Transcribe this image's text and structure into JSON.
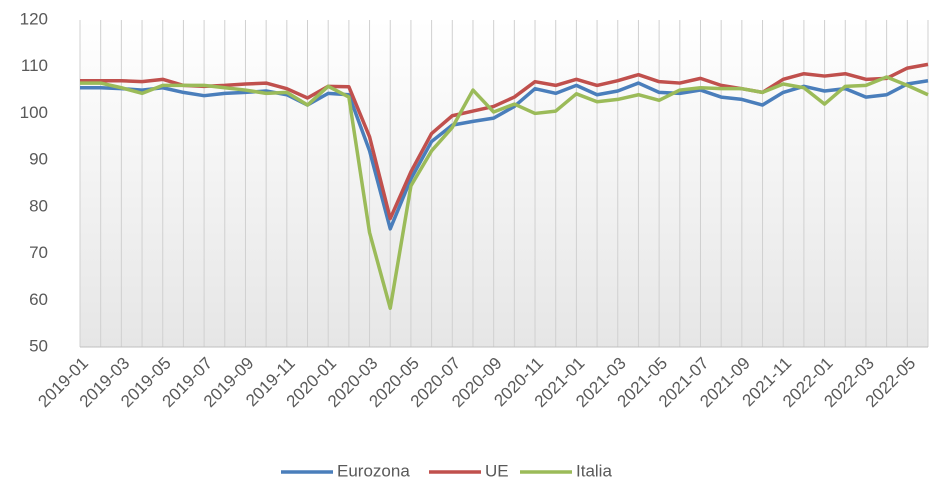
{
  "chart_data": {
    "type": "line",
    "categories": [
      "2019-01",
      null,
      "2019-03",
      null,
      "2019-05",
      null,
      "2019-07",
      null,
      "2019-09",
      null,
      "2019-11",
      null,
      "2020-01",
      null,
      "2020-03",
      null,
      "2020-05",
      null,
      "2020-07",
      null,
      "2020-09",
      null,
      "2020-11",
      null,
      "2021-01",
      null,
      "2021-03",
      null,
      "2021-05",
      null,
      "2021-07",
      null,
      "2021-09",
      null,
      "2021-11",
      null,
      "2022-01",
      null,
      "2022-03",
      null,
      "2022-05",
      null
    ],
    "series": [
      {
        "name": "Eurozona",
        "color": "#4a7ebb",
        "values": [
          105.5,
          105.5,
          105.3,
          105,
          105.5,
          104.5,
          103.8,
          104.3,
          104.5,
          104.8,
          104,
          101.8,
          104.3,
          104,
          92,
          75.3,
          86,
          94,
          97.5,
          98.3,
          99,
          101.5,
          105.3,
          104.3,
          106,
          104,
          104.8,
          106.5,
          104.5,
          104.3,
          105,
          103.5,
          103,
          101.8,
          104.5,
          105.8,
          104.8,
          105.3,
          103.5,
          104,
          106.3,
          107
        ]
      },
      {
        "name": "UE",
        "color": "#c0504d",
        "values": [
          107,
          107,
          107,
          106.8,
          107.3,
          106,
          105.8,
          106,
          106.3,
          106.5,
          105.3,
          103.3,
          105.8,
          105.7,
          95,
          77.5,
          87.5,
          95.7,
          99.5,
          100.5,
          101.5,
          103.5,
          106.8,
          106,
          107.3,
          106,
          107,
          108.3,
          106.8,
          106.5,
          107.5,
          106,
          105.3,
          104.5,
          107.3,
          108.5,
          108,
          108.5,
          107.3,
          107.5,
          109.7,
          110.5
        ]
      },
      {
        "name": "Italia",
        "color": "#9bbb59",
        "values": [
          106.5,
          106.5,
          105.5,
          104.3,
          106,
          106,
          106,
          105.5,
          105,
          104.3,
          104.5,
          101.8,
          105.8,
          103.5,
          74.5,
          58.3,
          84.5,
          92,
          97,
          105,
          100.3,
          102,
          100,
          100.5,
          104.2,
          102.5,
          103,
          104,
          102.8,
          105,
          105.5,
          105.3,
          105.3,
          104.5,
          106.3,
          105.5,
          102,
          105.8,
          106,
          107.8,
          106,
          104
        ]
      }
    ],
    "ylim": [
      50,
      120
    ],
    "yticks": [
      50,
      60,
      70,
      80,
      90,
      100,
      110,
      120
    ],
    "xgrid": true,
    "legend": "bottom"
  }
}
